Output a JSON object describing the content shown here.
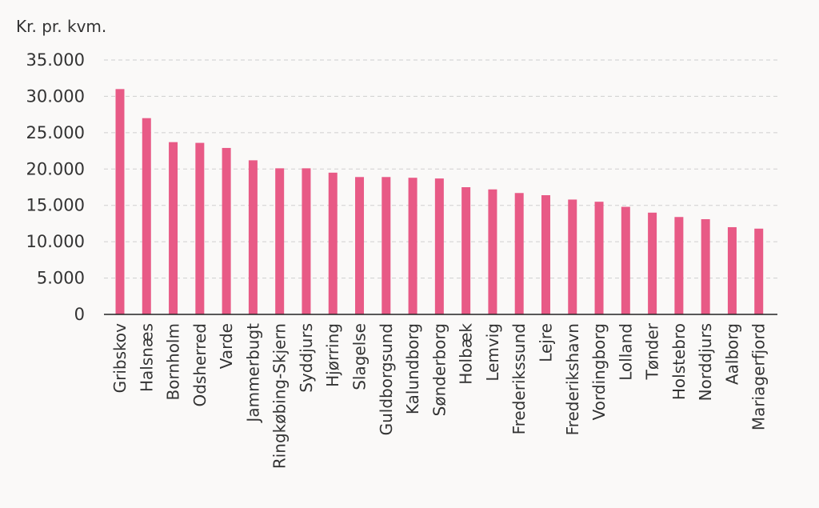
{
  "chart_data": {
    "type": "bar",
    "ylabel": "Kr. pr. kvm.",
    "ylim": [
      0,
      35000
    ],
    "yticks": [
      "0",
      "5.000",
      "10.000",
      "15.000",
      "20.000",
      "25.000",
      "30.000",
      "35.000"
    ],
    "ytick_values": [
      0,
      5000,
      10000,
      15000,
      20000,
      25000,
      30000,
      35000
    ],
    "grid": true,
    "bar_color": "#e85a86",
    "categories": [
      "Gribskov",
      "Halsnæs",
      "Bornholm",
      "Odsherred",
      "Varde",
      "Jammerbugt",
      "Ringkøbing-Skjern",
      "Syddjurs",
      "Hjørring",
      "Slagelse",
      "Guldborgsund",
      "Kalundborg",
      "Sønderborg",
      "Holbæk",
      "Lemvig",
      "Frederikssund",
      "Lejre",
      "Frederikshavn",
      "Vordingborg",
      "Lolland",
      "Tønder",
      "Holstebro",
      "Norddjurs",
      "Aalborg",
      "Mariagerfjord"
    ],
    "values": [
      31000,
      27000,
      23700,
      23600,
      22900,
      21200,
      20100,
      20100,
      19500,
      18900,
      18900,
      18800,
      18700,
      17500,
      17200,
      16700,
      16400,
      15800,
      15500,
      14800,
      14000,
      13400,
      13100,
      12000,
      11800
    ]
  }
}
